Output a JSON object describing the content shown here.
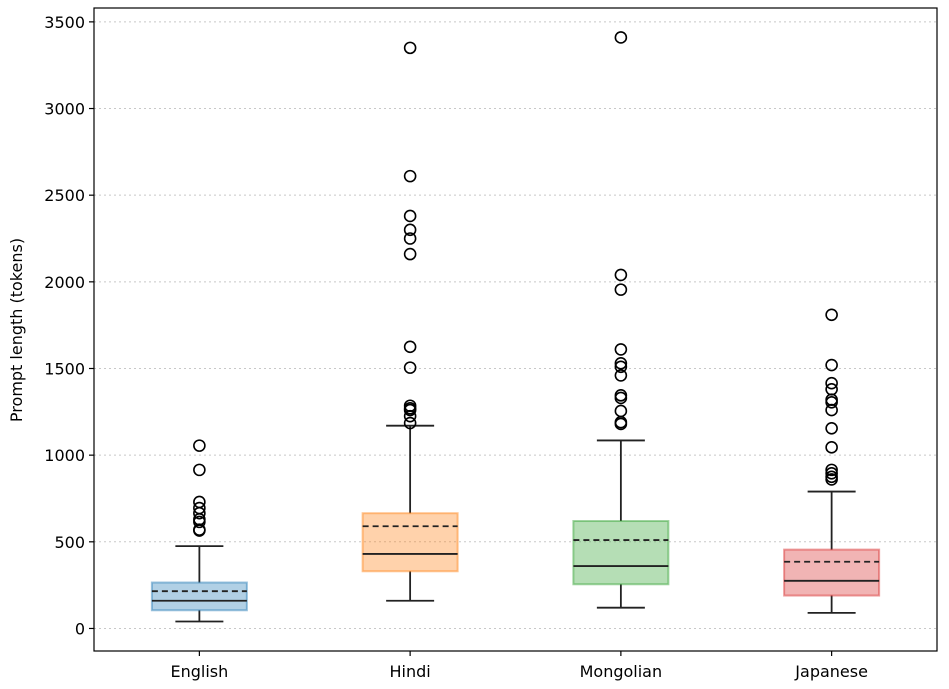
{
  "chart_data": {
    "type": "box",
    "title": "",
    "xlabel": "",
    "ylabel": "Prompt length (tokens)",
    "ylim": [
      -130,
      3580
    ],
    "yticks": [
      0,
      500,
      1000,
      1500,
      2000,
      2500,
      3000,
      3500
    ],
    "grid": "y-dotted",
    "categories": [
      "English",
      "Hindi",
      "Mongolian",
      "Japanese"
    ],
    "boxes": [
      {
        "name": "English",
        "color": "#1f77b4",
        "whisker_low": 40,
        "q1": 105,
        "median": 160,
        "q3": 265,
        "whisker_high": 475,
        "mean": 215,
        "outliers": [
          565,
          570,
          615,
          630,
          665,
          695,
          730,
          915,
          1055
        ]
      },
      {
        "name": "Hindi",
        "color": "#ff7f0e",
        "whisker_low": 160,
        "q1": 330,
        "median": 430,
        "q3": 665,
        "whisker_high": 1170,
        "mean": 590,
        "outliers": [
          1185,
          1225,
          1260,
          1270,
          1285,
          1505,
          1625,
          2160,
          2250,
          2300,
          2380,
          2610,
          3350
        ]
      },
      {
        "name": "Mongolian",
        "color": "#2ca02c",
        "whisker_low": 120,
        "q1": 255,
        "median": 360,
        "q3": 620,
        "whisker_high": 1085,
        "mean": 510,
        "outliers": [
          1180,
          1190,
          1255,
          1330,
          1345,
          1460,
          1510,
          1530,
          1610,
          1955,
          2040,
          3410
        ]
      },
      {
        "name": "Japanese",
        "color": "#d62728",
        "whisker_low": 90,
        "q1": 190,
        "median": 275,
        "q3": 455,
        "whisker_high": 790,
        "mean": 385,
        "outliers": [
          860,
          875,
          895,
          915,
          1045,
          1155,
          1260,
          1305,
          1320,
          1380,
          1415,
          1520,
          1810
        ]
      }
    ]
  }
}
